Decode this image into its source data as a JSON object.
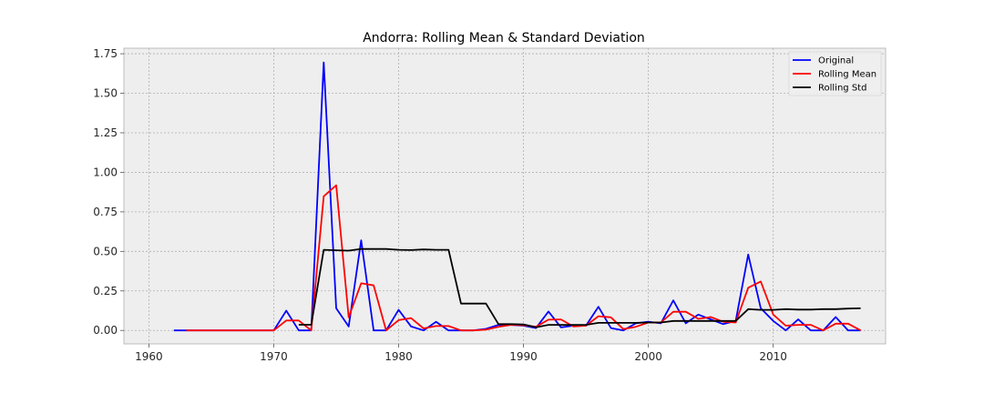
{
  "chart_data": {
    "type": "line",
    "title": "Andorra: Rolling Mean & Standard Deviation",
    "xlabel": "",
    "ylabel": "",
    "xlim": [
      1958,
      2019
    ],
    "ylim": [
      -0.085,
      1.785
    ],
    "xticks": [
      1960,
      1970,
      1980,
      1990,
      2000,
      2010
    ],
    "yticks": [
      0.0,
      0.25,
      0.5,
      0.75,
      1.0,
      1.25,
      1.5,
      1.75
    ],
    "ytick_labels": [
      "0.00",
      "0.25",
      "0.50",
      "0.75",
      "1.00",
      "1.25",
      "1.50",
      "1.75"
    ],
    "grid": true,
    "legend_position": "top-right",
    "series": [
      {
        "name": "Original",
        "color": "#0000ff",
        "x": [
          1962,
          1963,
          1964,
          1965,
          1966,
          1967,
          1968,
          1969,
          1970,
          1971,
          1972,
          1973,
          1974,
          1975,
          1976,
          1977,
          1978,
          1979,
          1980,
          1981,
          1982,
          1983,
          1984,
          1985,
          1986,
          1987,
          1988,
          1989,
          1990,
          1991,
          1992,
          1993,
          1994,
          1995,
          1996,
          1997,
          1998,
          1999,
          2000,
          2001,
          2002,
          2003,
          2004,
          2005,
          2006,
          2007,
          2008,
          2009,
          2010,
          2011,
          2012,
          2013,
          2014,
          2015,
          2016,
          2017
        ],
        "values": [
          0,
          0,
          0,
          0,
          0,
          0,
          0,
          0,
          0,
          0.125,
          0,
          0,
          1.695,
          0.14,
          0.025,
          0.57,
          0,
          0,
          0.13,
          0.025,
          0,
          0.055,
          0,
          0,
          0,
          0.01,
          0.035,
          0.035,
          0.03,
          0.015,
          0.12,
          0.02,
          0.03,
          0.03,
          0.15,
          0.015,
          0,
          0.045,
          0.055,
          0.045,
          0.19,
          0.045,
          0.1,
          0.07,
          0.04,
          0.06,
          0.48,
          0.14,
          0.06,
          0,
          0.07,
          0,
          0,
          0.085,
          0,
          0
        ]
      },
      {
        "name": "Rolling Mean",
        "color": "#ff0000",
        "x": [
          1963,
          1964,
          1965,
          1966,
          1967,
          1968,
          1969,
          1970,
          1971,
          1972,
          1973,
          1974,
          1975,
          1976,
          1977,
          1978,
          1979,
          1980,
          1981,
          1982,
          1983,
          1984,
          1985,
          1986,
          1987,
          1988,
          1989,
          1990,
          1991,
          1992,
          1993,
          1994,
          1995,
          1996,
          1997,
          1998,
          1999,
          2000,
          2001,
          2002,
          2003,
          2004,
          2005,
          2006,
          2007,
          2008,
          2009,
          2010,
          2011,
          2012,
          2013,
          2014,
          2015,
          2016,
          2017
        ],
        "values": [
          0,
          0,
          0,
          0,
          0,
          0,
          0,
          0,
          0.063,
          0.063,
          0,
          0.848,
          0.918,
          0.083,
          0.298,
          0.285,
          0,
          0.065,
          0.078,
          0.013,
          0.028,
          0.028,
          0,
          0,
          0.005,
          0.023,
          0.035,
          0.033,
          0.023,
          0.068,
          0.07,
          0.025,
          0.03,
          0.09,
          0.083,
          0.008,
          0.023,
          0.05,
          0.05,
          0.118,
          0.118,
          0.073,
          0.085,
          0.055,
          0.05,
          0.27,
          0.31,
          0.1,
          0.03,
          0.035,
          0.035,
          0,
          0.043,
          0.043,
          0
        ]
      },
      {
        "name": "Rolling Std",
        "color": "#000000",
        "x": [
          1972,
          1973,
          1974,
          1975,
          1976,
          1977,
          1978,
          1979,
          1980,
          1981,
          1982,
          1983,
          1984,
          1985,
          1986,
          1987,
          1988,
          1989,
          1990,
          1991,
          1992,
          1993,
          1994,
          1995,
          1996,
          1997,
          1998,
          1999,
          2000,
          2001,
          2002,
          2003,
          2004,
          2005,
          2006,
          2007,
          2008,
          2009,
          2010,
          2011,
          2012,
          2013,
          2014,
          2015,
          2016,
          2017
        ],
        "values": [
          0.036,
          0.036,
          0.51,
          0.507,
          0.505,
          0.515,
          0.515,
          0.515,
          0.51,
          0.508,
          0.512,
          0.51,
          0.51,
          0.17,
          0.17,
          0.17,
          0.04,
          0.04,
          0.038,
          0.02,
          0.035,
          0.035,
          0.035,
          0.035,
          0.048,
          0.048,
          0.048,
          0.048,
          0.05,
          0.05,
          0.06,
          0.06,
          0.06,
          0.06,
          0.06,
          0.06,
          0.135,
          0.13,
          0.13,
          0.135,
          0.132,
          0.132,
          0.135,
          0.135,
          0.138,
          0.14
        ]
      }
    ]
  }
}
